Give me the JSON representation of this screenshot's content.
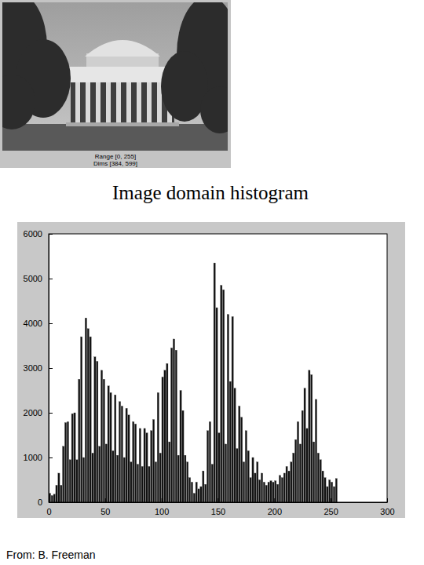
{
  "chart_data": {
    "type": "histogram",
    "title": "Image domain histogram",
    "bins": [
      0,
      2,
      4,
      6,
      8,
      10,
      12,
      14,
      16,
      18,
      20,
      22,
      24,
      26,
      28,
      30,
      32,
      34,
      36,
      38,
      40,
      42,
      44,
      46,
      48,
      50,
      52,
      54,
      56,
      58,
      60,
      62,
      64,
      66,
      68,
      70,
      72,
      74,
      76,
      78,
      80,
      82,
      84,
      86,
      88,
      90,
      92,
      94,
      96,
      98,
      100,
      102,
      104,
      106,
      108,
      110,
      112,
      114,
      116,
      118,
      120,
      122,
      124,
      126,
      128,
      130,
      132,
      134,
      136,
      138,
      140,
      142,
      144,
      146,
      148,
      150,
      152,
      154,
      156,
      158,
      160,
      162,
      164,
      166,
      168,
      170,
      172,
      174,
      176,
      178,
      180,
      182,
      184,
      186,
      188,
      190,
      192,
      194,
      196,
      198,
      200,
      202,
      204,
      206,
      208,
      210,
      212,
      214,
      216,
      218,
      220,
      222,
      224,
      226,
      228,
      230,
      232,
      234,
      236,
      238,
      240,
      242,
      244,
      246,
      248,
      250,
      252,
      254,
      256
    ],
    "values": [
      200,
      150,
      180,
      380,
      650,
      380,
      1250,
      1780,
      1800,
      950,
      1980,
      2000,
      950,
      2750,
      3700,
      1000,
      4120,
      3880,
      3700,
      1100,
      3250,
      3150,
      1250,
      2950,
      2750,
      1300,
      2600,
      2450,
      1150,
      2400,
      1050,
      2250,
      2150,
      1000,
      2100,
      1950,
      900,
      1800,
      1750,
      850,
      1650,
      800,
      1650,
      1550,
      800,
      1600,
      1850,
      900,
      2450,
      1100,
      2800,
      2950,
      3100,
      1350,
      3450,
      3650,
      3400,
      1050,
      2500,
      2050,
      1050,
      900,
      550,
      450,
      200,
      450,
      300,
      350,
      700,
      400,
      1600,
      1800,
      850,
      5350,
      4350,
      1550,
      4850,
      4750,
      1300,
      4200,
      2700,
      4150,
      2550,
      1200,
      2150,
      1900,
      900,
      1600,
      1150,
      550,
      1000,
      650,
      900,
      500,
      650,
      450,
      380,
      450,
      480,
      450,
      480,
      400,
      600,
      550,
      650,
      800,
      700,
      900,
      1100,
      1400,
      1800,
      1300,
      2050,
      2550,
      1650,
      2950,
      2850,
      1350,
      2300,
      1100,
      950,
      700,
      550,
      350,
      500,
      450,
      350,
      530
    ],
    "color": "#111111",
    "xlim": [
      0,
      300
    ],
    "xticks": [
      0,
      50,
      100,
      150,
      200,
      250,
      300
    ],
    "ylim": [
      0,
      6000
    ],
    "yticks": [
      0,
      1000,
      2000,
      3000,
      4000,
      5000,
      6000
    ],
    "grid": false
  },
  "image": {
    "caption": [
      "Range [0, 255]",
      "Dims [384, 599]"
    ]
  },
  "source": "From: B. Freeman"
}
